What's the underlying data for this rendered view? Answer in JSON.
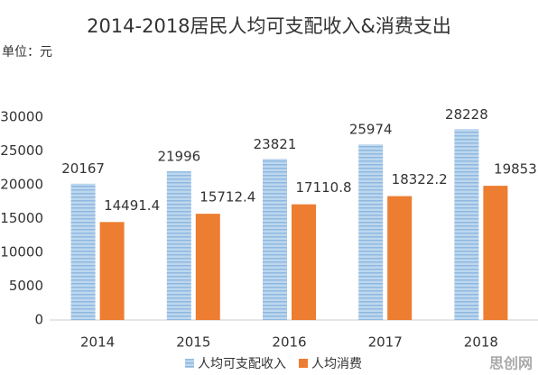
{
  "chart_data": {
    "type": "bar",
    "title": "2014-2018居民人均可支配收入&消费支出",
    "unit_label": "单位：元",
    "categories": [
      "2014",
      "2015",
      "2016",
      "2017",
      "2018"
    ],
    "series": [
      {
        "name": "人均可支配收入",
        "color": "#9dc3e6",
        "values": [
          20167,
          21996,
          23821,
          25974,
          28228
        ]
      },
      {
        "name": "人均消费",
        "color": "#ed7d31",
        "values": [
          14491.4,
          15712.4,
          17110.8,
          18322.2,
          19853
        ]
      }
    ],
    "ylim": [
      0,
      30000
    ],
    "yticks": [
      0,
      5000,
      10000,
      15000,
      20000,
      25000,
      30000
    ],
    "grid": false,
    "legend": "bottom",
    "watermark": "思创网"
  }
}
